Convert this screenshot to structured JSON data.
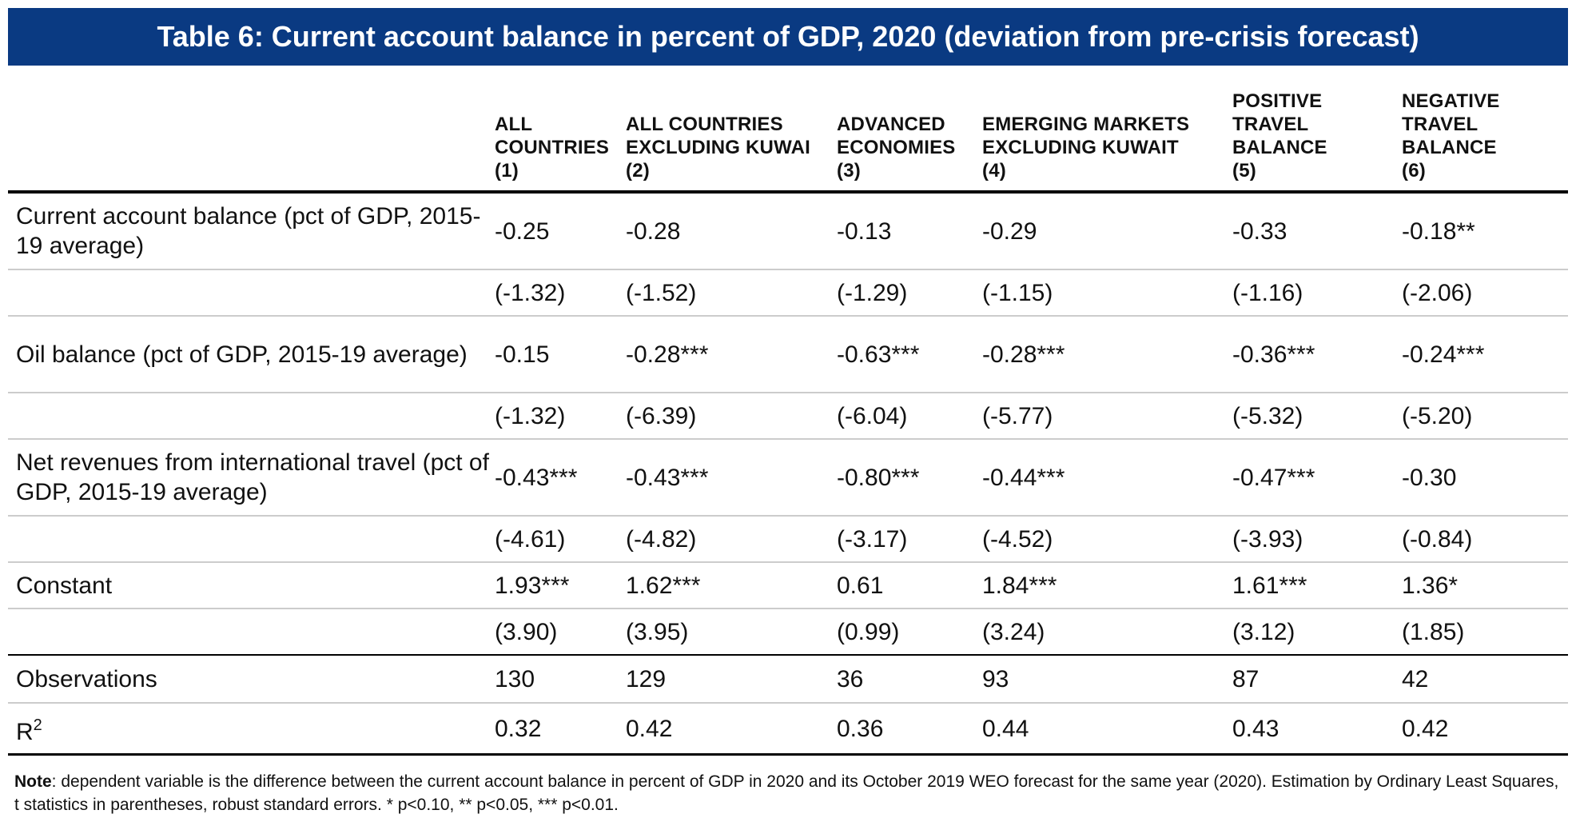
{
  "title": "Table 6: Current account balance in percent of GDP, 2020 (deviation from pre-crisis forecast)",
  "columns": [
    {
      "lines": [
        "ALL",
        "COUNTRIES",
        "(1)"
      ]
    },
    {
      "lines": [
        "ALL COUNTRIES",
        "EXCLUDING KUWAI",
        "(2)"
      ]
    },
    {
      "lines": [
        "ADVANCED",
        "ECONOMIES",
        "(3)"
      ]
    },
    {
      "lines": [
        "EMERGING MARKETS",
        "EXCLUDING KUWAIT",
        "(4)"
      ]
    },
    {
      "lines": [
        "POSITIVE",
        "TRAVEL",
        "BALANCE",
        "(5)"
      ]
    },
    {
      "lines": [
        "NEGATIVE",
        "TRAVEL",
        "BALANCE",
        "(6)"
      ]
    }
  ],
  "rows": [
    {
      "label": "Current account balance (pct of GDP, 2015-19 average)",
      "values": [
        "-0.25",
        "-0.28",
        "-0.13",
        "-0.29",
        "-0.33",
        "-0.18**"
      ]
    },
    {
      "label": "",
      "values": [
        "(-1.32)",
        "(-1.52)",
        "(-1.29)",
        "(-1.15)",
        "(-1.16)",
        "(-2.06)"
      ]
    },
    {
      "label": "Oil balance (pct of GDP, 2015-19 average)",
      "values": [
        "-0.15",
        "-0.28***",
        "-0.63***",
        "-0.28***",
        "-0.36***",
        "-0.24***"
      ]
    },
    {
      "label": "",
      "values": [
        "(-1.32)",
        "(-6.39)",
        "(-6.04)",
        "(-5.77)",
        "(-5.32)",
        "(-5.20)"
      ]
    },
    {
      "label": "Net revenues from international travel (pct of GDP, 2015-19 average)",
      "values": [
        "-0.43***",
        "-0.43***",
        "-0.80***",
        "-0.44***",
        "-0.47***",
        "-0.30"
      ]
    },
    {
      "label": "",
      "values": [
        "(-4.61)",
        "(-4.82)",
        "(-3.17)",
        "(-4.52)",
        "(-3.93)",
        "(-0.84)"
      ]
    },
    {
      "label": "Constant",
      "values": [
        "1.93***",
        "1.62***",
        "0.61",
        "1.84***",
        "1.61***",
        "1.36*"
      ]
    },
    {
      "label": "",
      "values": [
        "(3.90)",
        "(3.95)",
        "(0.99)",
        "(3.24)",
        "(3.12)",
        "(1.85)"
      ]
    }
  ],
  "observations": {
    "label": "Observations",
    "values": [
      "130",
      "129",
      "36",
      "93",
      "87",
      "42"
    ]
  },
  "r_squared": {
    "label": "R",
    "superscript": "2",
    "values": [
      "0.32",
      "0.42",
      "0.36",
      "0.44",
      "0.43",
      "0.42"
    ]
  },
  "note": {
    "bold": "Note",
    "text": ": dependent variable is the difference between the current account balance in percent of GDP in 2020 and its October 2019 WEO forecast for the same year (2020). Estimation by Ordinary Least Squares, t statistics in parentheses, robust standard errors. * p<0.10, ** p<0.05, *** p<0.01."
  },
  "colors": {
    "title_bar": "#0a3a82",
    "title_text": "#ffffff",
    "row_rule": "#cccccc",
    "heavy_rule": "#000000"
  }
}
